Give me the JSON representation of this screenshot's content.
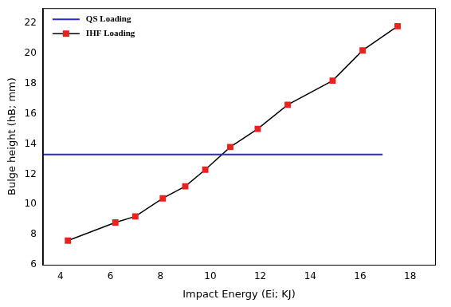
{
  "chart_data": {
    "type": "line",
    "x_label": "Impact Energy (Ei; KJ)",
    "y_label": "Bulge height (hB; mm)",
    "xlim": [
      3.3,
      19
    ],
    "ylim": [
      6,
      23
    ],
    "xticks": [
      4,
      6,
      8,
      10,
      12,
      14,
      16,
      18
    ],
    "yticks": [
      6,
      8,
      10,
      12,
      14,
      16,
      18,
      20,
      22
    ],
    "grid": false,
    "legend": "upper left",
    "series": [
      {
        "name": "QS Loading",
        "color": "#2a2ad0",
        "marker": "none",
        "line_style": "solid",
        "x": [
          3.3,
          16.9
        ],
        "values": [
          13.3,
          13.3
        ]
      },
      {
        "name": "IHF Loading",
        "color": "#000000",
        "marker": "square",
        "line_style": "solid",
        "colors": [
          "#e8231f",
          "#e8231f",
          "#e8231f",
          "#e8231f",
          "#e8231f",
          "#e8231f",
          "#e8231f",
          "#e8231f",
          "#e8231f",
          "#e8231f",
          "#e8231f",
          "#e8231f"
        ],
        "x": [
          4.3,
          6.2,
          7.0,
          8.1,
          9.0,
          9.8,
          10.8,
          11.9,
          13.1,
          14.9,
          16.1,
          17.5
        ],
        "values": [
          7.6,
          8.8,
          9.2,
          10.4,
          11.2,
          12.3,
          13.8,
          15.0,
          16.6,
          18.2,
          20.2,
          21.8
        ]
      }
    ]
  }
}
